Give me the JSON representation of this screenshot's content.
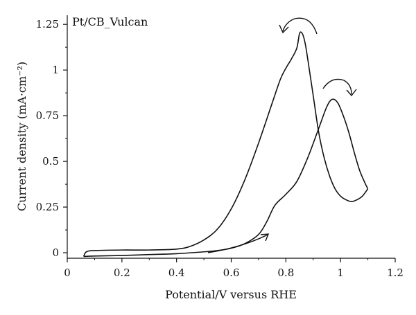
{
  "chart_data": {
    "type": "line",
    "title": "Pt/CB_Vulcan",
    "xlabel": "Potential/V versus RHE",
    "ylabel": "Current density (mA·cm⁻²)",
    "xlim": [
      0,
      1.2
    ],
    "ylim": [
      -0.03,
      1.3
    ],
    "x_ticks": [
      0,
      0.2,
      0.4,
      0.6,
      0.8,
      1,
      1.2
    ],
    "x_tick_labels": [
      "0",
      "0.2",
      "0.4",
      "0.6",
      "0.8",
      "1",
      "1.2"
    ],
    "y_ticks": [
      0,
      0.25,
      0.5,
      0.75,
      1,
      1.25
    ],
    "y_tick_labels": [
      "0",
      "0.25",
      "0.5",
      "0.75",
      "1",
      "1.25"
    ],
    "grid": false,
    "series": [
      {
        "sweep": "anodic",
        "color": "#111111",
        "x": [
          0.06,
          0.1,
          0.2,
          0.3,
          0.4,
          0.5,
          0.55,
          0.6,
          0.65,
          0.7,
          0.73,
          0.76,
          0.8,
          0.84,
          0.88,
          0.92,
          0.95,
          0.97,
          0.99,
          1.01,
          1.03,
          1.05,
          1.07,
          1.09,
          1.1
        ],
        "y": [
          -0.02,
          -0.018,
          -0.015,
          -0.01,
          -0.005,
          0.005,
          0.012,
          0.025,
          0.05,
          0.1,
          0.17,
          0.26,
          0.32,
          0.39,
          0.52,
          0.68,
          0.8,
          0.84,
          0.82,
          0.75,
          0.66,
          0.55,
          0.45,
          0.38,
          0.35
        ]
      },
      {
        "sweep": "cathodic",
        "color": "#111111",
        "x": [
          1.1,
          1.08,
          1.06,
          1.04,
          1.02,
          1.0,
          0.98,
          0.96,
          0.94,
          0.92,
          0.9,
          0.88,
          0.87,
          0.86,
          0.85,
          0.84,
          0.82,
          0.8,
          0.78,
          0.75,
          0.7,
          0.65,
          0.6,
          0.55,
          0.5,
          0.45,
          0.4,
          0.3,
          0.2,
          0.1,
          0.07,
          0.06
        ],
        "y": [
          0.35,
          0.31,
          0.29,
          0.28,
          0.29,
          0.31,
          0.35,
          0.42,
          0.52,
          0.66,
          0.86,
          1.06,
          1.15,
          1.2,
          1.2,
          1.12,
          1.06,
          1.01,
          0.95,
          0.82,
          0.6,
          0.4,
          0.24,
          0.13,
          0.07,
          0.035,
          0.02,
          0.015,
          0.015,
          0.012,
          0.005,
          -0.02
        ]
      }
    ]
  }
}
